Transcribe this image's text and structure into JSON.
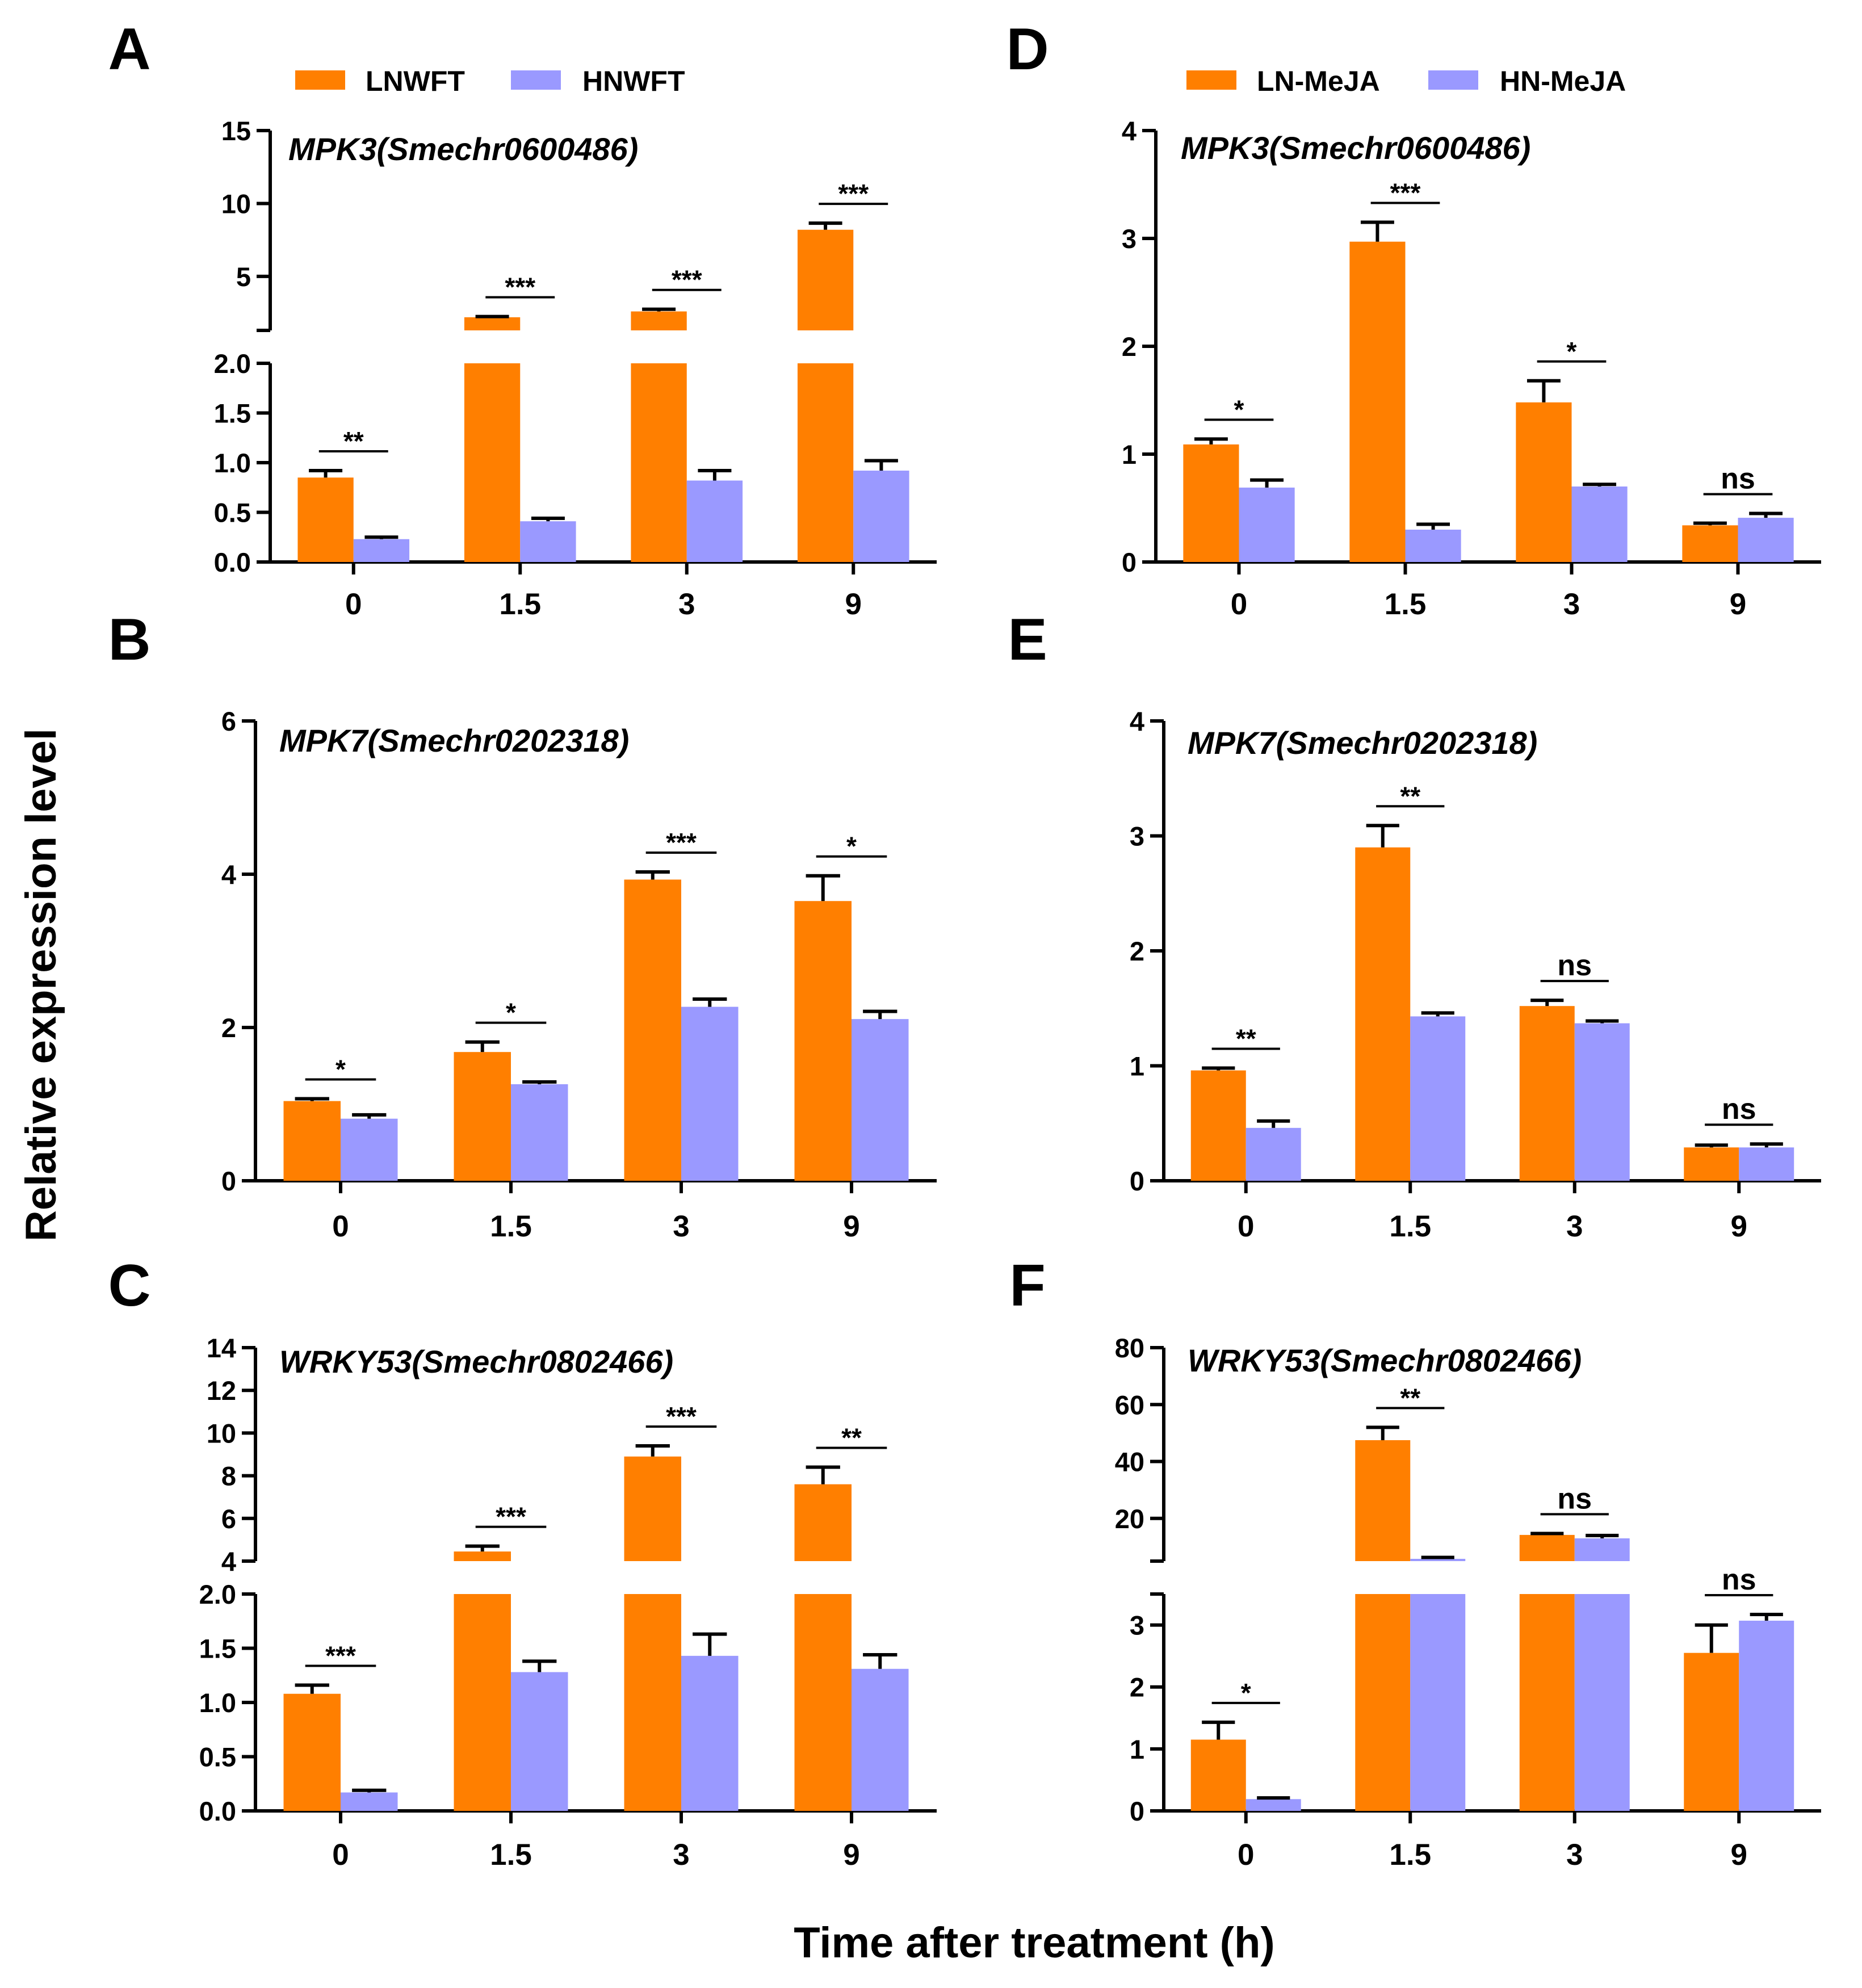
{
  "figure": {
    "ylabel": "Relative expression level",
    "xlabel": "Time after treatment (h)"
  },
  "legends": {
    "left": {
      "series_a": "LNWFT",
      "series_b": "HNWFT"
    },
    "right": {
      "series_a": "LN-MeJA",
      "series_b": "HN-MeJA"
    }
  },
  "colors": {
    "series_a": "#ff7f00",
    "series_b": "#9a99ff",
    "axis": "#000000"
  },
  "chart_data": [
    {
      "id": "A",
      "type": "bar",
      "title": "MPK3(Smechr0600486)",
      "categories": [
        "0",
        "1.5",
        "3",
        "9"
      ],
      "series": [
        {
          "name": "LNWFT",
          "values": [
            0.85,
            2.2,
            2.6,
            8.2
          ],
          "errors": [
            0.07,
            0.05,
            0.15,
            0.45
          ]
        },
        {
          "name": "HNWFT",
          "values": [
            0.23,
            0.41,
            0.82,
            0.92
          ],
          "errors": [
            0.02,
            0.03,
            0.1,
            0.1
          ]
        }
      ],
      "significance": [
        "**",
        "***",
        "***",
        "***"
      ],
      "broken_axis": true,
      "lower": {
        "ylim": [
          0,
          2
        ],
        "ticks": [
          "0.0",
          "0.5",
          "1.0",
          "1.5",
          "2.0"
        ]
      },
      "upper": {
        "ylim": [
          1.3,
          15
        ],
        "ticks": [
          "5",
          "10",
          "15"
        ]
      }
    },
    {
      "id": "B",
      "type": "bar",
      "title": "MPK7(Smechr0202318)",
      "categories": [
        "0",
        "1.5",
        "3",
        "9"
      ],
      "series": [
        {
          "name": "LNWFT",
          "values": [
            1.04,
            1.68,
            3.93,
            3.65
          ],
          "errors": [
            0.03,
            0.13,
            0.1,
            0.33
          ]
        },
        {
          "name": "HNWFT",
          "values": [
            0.81,
            1.26,
            2.27,
            2.11
          ],
          "errors": [
            0.05,
            0.03,
            0.1,
            0.1
          ]
        }
      ],
      "significance": [
        "*",
        "*",
        "***",
        "*"
      ],
      "broken_axis": false,
      "ylim": [
        0,
        6
      ],
      "ticks": [
        "0",
        "2",
        "4",
        "6"
      ]
    },
    {
      "id": "C",
      "type": "bar",
      "title": "WRKY53(Smechr0802466)",
      "categories": [
        "0",
        "1.5",
        "3",
        "9"
      ],
      "series": [
        {
          "name": "LNWFT",
          "values": [
            1.08,
            4.45,
            8.9,
            7.6
          ],
          "errors": [
            0.08,
            0.25,
            0.5,
            0.8
          ]
        },
        {
          "name": "HNWFT",
          "values": [
            0.17,
            1.28,
            1.43,
            1.31
          ],
          "errors": [
            0.02,
            0.1,
            0.2,
            0.13
          ]
        }
      ],
      "significance": [
        "***",
        "***",
        "***",
        "**"
      ],
      "broken_axis": true,
      "lower": {
        "ylim": [
          0,
          2
        ],
        "ticks": [
          "0.0",
          "0.5",
          "1.0",
          "1.5",
          "2.0"
        ]
      },
      "upper": {
        "ylim": [
          4,
          14
        ],
        "ticks": [
          "4",
          "6",
          "8",
          "10",
          "12",
          "14"
        ]
      }
    },
    {
      "id": "D",
      "type": "bar",
      "title": "MPK3(Smechr0600486)",
      "categories": [
        "0",
        "1.5",
        "3",
        "9"
      ],
      "series": [
        {
          "name": "LN-MeJA",
          "values": [
            1.09,
            2.97,
            1.48,
            0.34
          ],
          "errors": [
            0.05,
            0.18,
            0.2,
            0.02
          ]
        },
        {
          "name": "HN-MeJA",
          "values": [
            0.69,
            0.3,
            0.7,
            0.41
          ],
          "errors": [
            0.07,
            0.05,
            0.02,
            0.04
          ]
        }
      ],
      "significance": [
        "*",
        "***",
        "*",
        "ns"
      ],
      "broken_axis": false,
      "ylim": [
        0,
        4
      ],
      "ticks": [
        "0",
        "1",
        "2",
        "3",
        "4"
      ]
    },
    {
      "id": "E",
      "type": "bar",
      "title": "MPK7(Smechr0202318)",
      "categories": [
        "0",
        "1.5",
        "3",
        "9"
      ],
      "series": [
        {
          "name": "LN-MeJA",
          "values": [
            0.96,
            2.9,
            1.52,
            0.29
          ],
          "errors": [
            0.02,
            0.19,
            0.05,
            0.02
          ]
        },
        {
          "name": "HN-MeJA",
          "values": [
            0.46,
            1.43,
            1.37,
            0.29
          ],
          "errors": [
            0.06,
            0.03,
            0.02,
            0.03
          ]
        }
      ],
      "significance": [
        "**",
        "**",
        "ns",
        "ns"
      ],
      "broken_axis": false,
      "ylim": [
        0,
        4
      ],
      "ticks": [
        "0",
        "1",
        "2",
        "3",
        "4"
      ]
    },
    {
      "id": "F",
      "type": "bar",
      "title": "WRKY53(Smechr0802466)",
      "categories": [
        "0",
        "1.5",
        "3",
        "9"
      ],
      "series": [
        {
          "name": "LN-MeJA",
          "values": [
            1.15,
            47.5,
            14.2,
            2.55
          ],
          "errors": [
            0.28,
            4.5,
            0.5,
            0.45
          ]
        },
        {
          "name": "HN-MeJA",
          "values": [
            0.19,
            5.8,
            13.0,
            3.07
          ],
          "errors": [
            0.02,
            0.5,
            1.0,
            0.1
          ]
        }
      ],
      "significance": [
        "*",
        "**",
        "ns",
        "ns"
      ],
      "broken_axis": true,
      "lower": {
        "ylim": [
          0,
          3.5
        ],
        "ticks": [
          "0",
          "1",
          "2",
          "3"
        ]
      },
      "upper": {
        "ylim": [
          5,
          80
        ],
        "ticks": [
          "20",
          "40",
          "60",
          "80"
        ]
      }
    }
  ]
}
